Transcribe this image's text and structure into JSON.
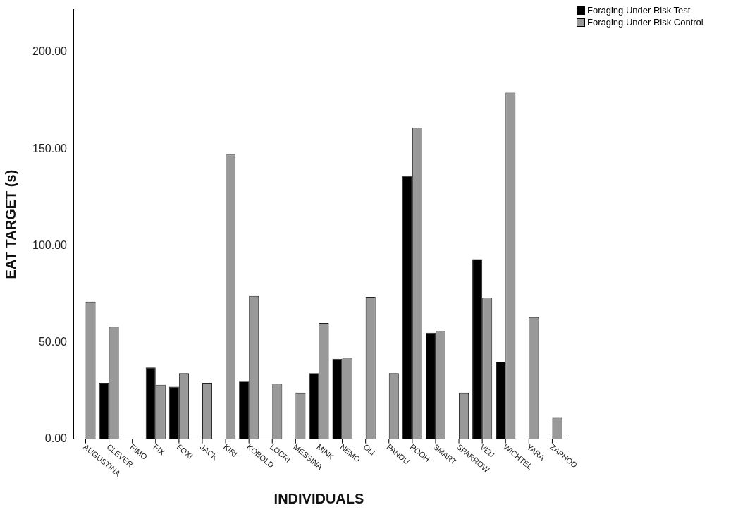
{
  "chart_data": {
    "type": "bar",
    "xlabel": "INDIVIDUALS",
    "ylabel": "EAT TARGET (s)",
    "categories": [
      "AUGUSTINA",
      "CLEVER",
      "FIMO",
      "FIX",
      "FOXI",
      "JACK",
      "KIRI",
      "KOBOLD",
      "LOCRI",
      "MESSINA",
      "MINK",
      "NEMO",
      "OLI",
      "PANDU",
      "POOH",
      "SMART",
      "SPARROW",
      "VEU",
      "WICHTEL",
      "YARA",
      "ZAPHOD"
    ],
    "series": [
      {
        "name": "Foraging Under Risk Test",
        "color": "#000000",
        "values": [
          0,
          29,
          0,
          37,
          27,
          0,
          0,
          30,
          0,
          0,
          34,
          41.5,
          0,
          0,
          136,
          55,
          0,
          93,
          40,
          0,
          0
        ]
      },
      {
        "name": "Foraging Under Risk Control",
        "color": "#999999",
        "values": [
          71,
          58,
          0,
          28,
          34,
          29,
          147,
          74,
          28.5,
          24,
          60,
          42,
          73.5,
          34,
          161,
          56,
          24,
          73,
          179,
          63,
          11
        ]
      }
    ],
    "ylim": [
      0,
      222
    ],
    "yticks": [
      {
        "value": 0,
        "label": "0.00"
      },
      {
        "value": 50,
        "label": "50.00"
      },
      {
        "value": 100,
        "label": "100.00"
      },
      {
        "value": 150,
        "label": "150.00"
      },
      {
        "value": 200,
        "label": "200.00"
      }
    ],
    "grid": false,
    "legend": "top right"
  }
}
